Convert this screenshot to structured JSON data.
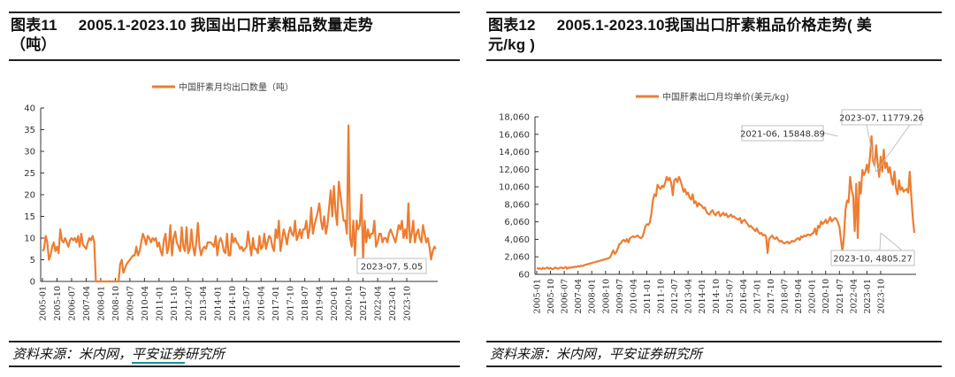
{
  "colors": {
    "series": "#ED7D31",
    "axis": "#333333",
    "callout_border": "#BFBFBF",
    "source_underline": "#1A8F9A"
  },
  "left": {
    "title_num": "图表11",
    "title_line1": "2005.1-2023.10 我国出口肝素粗品数量走势",
    "title_line2": "（吨）",
    "source_prefix": "资料来源：米内网，",
    "source_link": "平安证券",
    "source_suffix": "研究所"
  },
  "right": {
    "title_num": "图表12",
    "title_line1": "2005.1-2023.10我国出口肝素粗品价格走势( 美",
    "title_line2": "元/kg )",
    "source": "资料来源：米内网，平安证券研究所"
  },
  "chart_data": [
    {
      "type": "line",
      "title": "2005.1-2023.10 我国出口肝素粗品数量走势（吨）",
      "legend": [
        "中国肝素月均出口数量（吨）"
      ],
      "legend_placement": "top-center",
      "xlabel": "",
      "ylabel": "",
      "ylim": [
        0,
        40
      ],
      "yticks": [
        "40",
        "35",
        "30",
        "25",
        "20",
        "15",
        "10",
        "5",
        "0"
      ],
      "ytick_values": [
        40,
        35,
        30,
        25,
        20,
        15,
        10,
        5,
        0
      ],
      "xticks": [
        "2005-01",
        "2005-10",
        "2006-07",
        "2007-04",
        "2008-01",
        "2008-10",
        "2009-07",
        "2010-04",
        "2011-01",
        "2011-10",
        "2012-07",
        "2013-04",
        "2014-01",
        "2014-10",
        "2015-07",
        "2016-04",
        "2017-01",
        "2017-10",
        "2018-07",
        "2019-04",
        "2020-01",
        "2020-10",
        "2021-07",
        "2022-04",
        "2023-01",
        "2023-10"
      ],
      "grid": false,
      "annotations": [
        {
          "x": "2023-07",
          "y": 5.05,
          "text": "2023-07, 5.05"
        }
      ],
      "x_start": "2005-01",
      "series": [
        {
          "name": "中国肝素月均出口数量（吨）",
          "values": [
            7,
            7.5,
            10.5,
            9,
            5,
            6,
            8,
            9,
            7,
            8,
            6.5,
            12,
            9.5,
            9,
            10,
            9,
            8,
            9.5,
            10,
            9.5,
            10,
            9,
            10.5,
            8,
            11,
            8.5,
            8,
            7.5,
            9,
            10,
            9.5,
            10.5,
            9,
            0,
            0,
            0,
            0,
            0,
            0,
            0,
            0,
            0,
            0,
            0,
            0,
            0,
            0,
            0,
            4,
            5,
            2,
            3,
            4,
            4.5,
            5,
            5.5,
            6,
            6,
            8,
            6,
            7,
            9,
            11,
            10,
            8.5,
            10.5,
            10,
            9,
            10,
            9.5,
            10,
            8,
            9,
            7,
            6,
            9.5,
            11,
            6.5,
            8,
            13,
            6,
            10,
            11.5,
            9,
            8,
            7,
            12.5,
            8,
            7,
            12.5,
            6.5,
            7.5,
            12,
            8,
            6,
            9,
            13.5,
            8,
            6,
            7.5,
            8,
            7.5,
            9,
            9,
            9,
            8.5,
            8,
            10.5,
            6,
            9,
            10,
            9,
            7,
            6.5,
            11,
            6,
            6,
            11,
            9,
            10,
            9,
            8.5,
            7.5,
            8,
            7,
            7.5,
            8,
            11.5,
            8.5,
            6,
            10,
            7.5,
            7.5,
            6.5,
            10.5,
            7.5,
            8,
            11,
            7.5,
            9,
            10.5,
            10,
            8,
            7,
            12,
            10,
            14,
            7,
            9.5,
            12,
            10.5,
            8.5,
            11,
            12.5,
            11,
            10.5,
            14,
            9.5,
            10.5,
            12,
            10,
            12,
            12,
            14,
            10,
            12,
            17,
            11,
            13,
            14.5,
            16,
            18,
            14,
            12,
            15,
            11,
            13,
            17,
            21,
            15,
            22,
            16,
            13,
            23,
            20,
            17,
            14,
            14,
            11,
            36,
            10,
            8,
            14,
            6,
            14,
            12,
            13,
            20,
            5,
            14,
            9,
            12,
            10,
            11,
            11,
            14,
            8,
            9,
            11,
            11,
            9,
            10,
            10,
            9,
            11,
            12,
            11,
            10,
            9,
            11,
            13,
            12,
            14,
            10,
            12,
            10,
            18,
            9,
            11,
            14,
            9,
            11,
            12,
            10,
            9,
            13,
            11,
            9,
            10,
            8,
            5.05,
            7,
            8,
            7.5
          ]
        }
      ]
    },
    {
      "type": "line",
      "title": "2005.1-2023.10我国出口肝素粗品价格走势( 美元/kg )",
      "legend": [
        "中国肝素出口月均单价(美元/kg)"
      ],
      "legend_placement": "top-center",
      "xlabel": "",
      "ylabel": "",
      "ylim": [
        60,
        18060
      ],
      "yticks": [
        "18,060",
        "16,060",
        "14,060",
        "12,060",
        "10,060",
        "8,060",
        "6,060",
        "4,060",
        "2,060",
        "60"
      ],
      "ytick_values": [
        18060,
        16060,
        14060,
        12060,
        10060,
        8060,
        6060,
        4060,
        2060,
        60
      ],
      "xticks": [
        "2005-01",
        "2005-10",
        "2006-07",
        "2007-04",
        "2008-01",
        "2008-10",
        "2009-07",
        "2010-04",
        "2011-01",
        "2011-10",
        "2012-07",
        "2013-04",
        "2014-01",
        "2014-10",
        "2015-07",
        "2016-04",
        "2017-01",
        "2017-10",
        "2018-07",
        "2019-04",
        "2020-01",
        "2020-10",
        "2021-07",
        "2022-04",
        "2023-01",
        "2023-10"
      ],
      "grid": false,
      "annotations": [
        {
          "x": "2021-06",
          "y": 15848.89,
          "text": "2021-06, 15848.89"
        },
        {
          "x": "2023-07",
          "y": 11779.26,
          "text": "2023-07, 11779.26"
        },
        {
          "x": "2023-10",
          "y": 4805.27,
          "text": "2023-10, 4805.27"
        }
      ],
      "x_start": "2005-01",
      "series": [
        {
          "name": "中国肝素出口月均单价(美元/kg)",
          "values": [
            800,
            700,
            750,
            650,
            800,
            700,
            750,
            850,
            700,
            800,
            650,
            700,
            850,
            750,
            700,
            800,
            850,
            750,
            800,
            900,
            700,
            850,
            800,
            900,
            850,
            950,
            900,
            1000,
            950,
            1050,
            1000,
            1100,
            1150,
            1200,
            1250,
            1300,
            1350,
            1400,
            1450,
            1500,
            1550,
            1600,
            1650,
            1700,
            1750,
            1800,
            1850,
            1900,
            2000,
            2400,
            2800,
            2400,
            2600,
            3000,
            3500,
            3600,
            3900,
            4000,
            3800,
            4100,
            3700,
            4200,
            4300,
            4400,
            4300,
            4400,
            4500,
            4300,
            4200,
            4300,
            4800,
            5500,
            5800,
            5700,
            6000,
            7000,
            8500,
            9200,
            9000,
            10300,
            10000,
            9800,
            10200,
            10000,
            10500,
            11200,
            10800,
            11100,
            10500,
            9100,
            10800,
            11000,
            10600,
            11200,
            10800,
            10200,
            9500,
            9800,
            9200,
            9400,
            8800,
            8600,
            9200,
            8200,
            8400,
            7800,
            8200,
            8000,
            7900,
            7600,
            7700,
            7200,
            7000,
            6900,
            7200,
            7400,
            7000,
            6800,
            7100,
            7200,
            6700,
            6900,
            7100,
            6800,
            7000,
            6600,
            6700,
            6900,
            6600,
            6700,
            6500,
            6400,
            6300,
            6500,
            5900,
            6200,
            6300,
            6000,
            5800,
            5500,
            5600,
            5400,
            5200,
            5000,
            5300,
            4900,
            4700,
            4800,
            4500,
            4600,
            4400,
            2500,
            4100,
            4300,
            4500,
            4200,
            4100,
            4300,
            4000,
            3800,
            3900,
            3700,
            3600,
            3700,
            3800,
            3600,
            3700,
            3900,
            3800,
            3900,
            4100,
            4200,
            4000,
            4400,
            4300,
            4500,
            4400,
            4600,
            4600,
            4500,
            4700,
            4800,
            5300,
            4600,
            5600,
            5400,
            6100,
            5800,
            6000,
            6300,
            5900,
            6200,
            6600,
            6100,
            6300,
            6500,
            6400,
            6000,
            5500,
            4000,
            2600,
            4500,
            7500,
            8500,
            8300,
            11200,
            9700,
            9000,
            5000,
            10400,
            4200,
            10600,
            9300,
            12000,
            11400,
            11800,
            12600,
            11700,
            13500,
            15848.89,
            13000,
            12500,
            14800,
            12800,
            11200,
            13500,
            11800,
            14300,
            12200,
            12800,
            11700,
            12300,
            11000,
            10300,
            11800,
            9900,
            9200,
            10800,
            9700,
            10000,
            9500,
            9700,
            9800,
            9400,
            11779.26,
            9000,
            6500,
            4805.27
          ]
        }
      ]
    }
  ]
}
